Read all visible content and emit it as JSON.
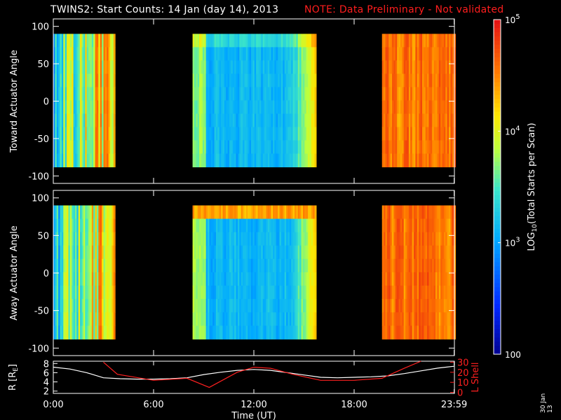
{
  "title": "TWINS2: Start Counts: 14 Jan (day  14), 2013",
  "note": "NOTE: Data Preliminary - Not validated",
  "stamp": "30 Jan 13",
  "colors": {
    "background": "#000000",
    "note": "#ff1e1e",
    "lshell": "#ff2020",
    "r_curve": "#ffffff"
  },
  "chart_data": [
    {
      "type": "heatmap",
      "ylabel": "Toward Actuator Angle",
      "ylim": [
        -110,
        110
      ],
      "yticks": [
        100,
        50,
        0,
        -50,
        -100
      ],
      "data_range": [
        -88,
        90
      ],
      "xlim": [
        0,
        1440
      ],
      "coverage_minutes": [
        [
          0,
          220
        ],
        [
          500,
          940
        ],
        [
          1180,
          1440
        ]
      ],
      "description_levels": "background ~10^3 with high counts (~10^4.7) near 8-15 UT edges and after 20 UT"
    },
    {
      "type": "heatmap",
      "ylabel": "Away Actuator Angle",
      "ylim": [
        -110,
        110
      ],
      "yticks": [
        100,
        50,
        0,
        -50,
        -100
      ],
      "data_range": [
        -88,
        90
      ],
      "xlim": [
        0,
        1440
      ],
      "coverage_minutes": [
        [
          0,
          220
        ],
        [
          500,
          940
        ],
        [
          1180,
          1440
        ]
      ]
    },
    {
      "type": "line",
      "ylabel_left": "R [R",
      "ylabel_left_sub": "E",
      "ylabel_left_end": "]",
      "ylabel_right": "L Shell",
      "xlabel": "Time (UT)",
      "x_ticks": [
        "0:00",
        "6:00",
        "12:00",
        "18:00",
        "23:59"
      ],
      "x_tick_minutes": [
        0,
        360,
        720,
        1080,
        1439
      ],
      "left_ylim": [
        1.5,
        8.5
      ],
      "left_yticks": [
        8,
        6,
        4,
        2
      ],
      "right_ylim": [
        -1,
        31
      ],
      "right_yticks": [
        30,
        20,
        10,
        0
      ],
      "series": [
        {
          "axis": "left",
          "x": [
            0,
            60,
            120,
            180,
            240,
            300,
            360,
            420,
            480,
            540,
            600,
            660,
            720,
            780,
            840,
            900,
            960,
            1020,
            1080,
            1140,
            1200,
            1260,
            1320,
            1380,
            1439
          ],
          "y": [
            7.2,
            6.8,
            6.0,
            4.9,
            4.7,
            4.6,
            4.6,
            4.7,
            4.9,
            5.6,
            6.1,
            6.5,
            6.7,
            6.5,
            6.0,
            5.5,
            5.0,
            4.9,
            5.0,
            5.1,
            5.3,
            5.8,
            6.4,
            7.0,
            7.4
          ]
        },
        {
          "axis": "right",
          "x": [
            180,
            230,
            360,
            480,
            560,
            660,
            720,
            780,
            860,
            960,
            1080,
            1180,
            1260,
            1320
          ],
          "y": [
            30,
            18,
            12,
            14,
            5,
            20,
            25,
            24,
            18,
            12,
            12,
            14,
            24,
            31
          ]
        }
      ]
    }
  ],
  "colorbar": {
    "label": "LOG",
    "label_sub": "10",
    "label_rest": "(Total Starts per Scan)",
    "ticks": [
      {
        "text": "10",
        "sup": "5",
        "value": 5
      },
      {
        "text": "10",
        "sup": "4",
        "value": 4
      },
      {
        "text": "10",
        "sup": "3",
        "value": 3
      },
      {
        "text": "100",
        "sup": "",
        "value": 2
      }
    ],
    "range": [
      2,
      5
    ]
  }
}
